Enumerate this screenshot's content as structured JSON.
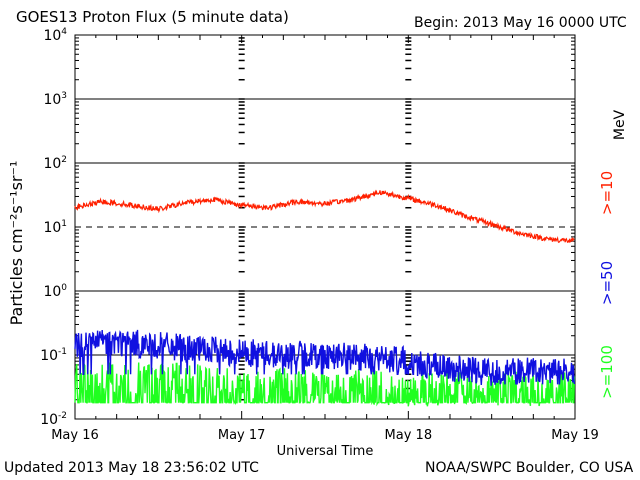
{
  "header": {
    "title": "GOES13 Proton Flux (5 minute data)",
    "begin": "Begin: 2013 May 16 0000 UTC"
  },
  "footer": {
    "updated": "Updated 2013 May 18 23:56:02 UTC",
    "credit": "NOAA/SWPC Boulder, CO USA"
  },
  "chart_data": {
    "type": "line",
    "title": "GOES13 Proton Flux (5 minute data)",
    "xlabel": "Universal Time",
    "ylabel": "Particles cm⁻²s⁻¹sr⁻¹",
    "yscale": "log",
    "ylim": [
      0.01,
      10000
    ],
    "y_ticks": [
      {
        "base": "10",
        "exp": "4"
      },
      {
        "base": "10",
        "exp": "3"
      },
      {
        "base": "10",
        "exp": "2"
      },
      {
        "base": "10",
        "exp": "1"
      },
      {
        "base": "10",
        "exp": "0"
      },
      {
        "base": "10",
        "exp": "-1"
      },
      {
        "base": "10",
        "exp": "-2"
      }
    ],
    "x_ticks": [
      "May 16",
      "May 17",
      "May 18",
      "May 19"
    ],
    "xlim": [
      "2013-05-16",
      "2013-05-19"
    ],
    "threshold": {
      "value": 10,
      "style": "dashed"
    },
    "unit_label": "MeV",
    "series": [
      {
        "name": ">=10",
        "color": "#ff2000",
        "x": [
          "2013-05-16 00:00",
          "2013-05-16 04:00",
          "2013-05-16 08:00",
          "2013-05-16 12:00",
          "2013-05-16 16:00",
          "2013-05-16 20:00",
          "2013-05-17 00:00",
          "2013-05-17 04:00",
          "2013-05-17 08:00",
          "2013-05-17 12:00",
          "2013-05-17 16:00",
          "2013-05-17 20:00",
          "2013-05-18 00:00",
          "2013-05-18 04:00",
          "2013-05-18 08:00",
          "2013-05-18 12:00",
          "2013-05-18 16:00",
          "2013-05-18 20:00",
          "2013-05-18 23:55"
        ],
        "values": [
          20,
          25,
          22,
          19,
          24,
          27,
          22,
          20,
          25,
          23,
          27,
          35,
          28,
          22,
          15,
          11,
          8,
          6.5,
          6
        ]
      },
      {
        "name": ">=50",
        "color": "#1010e0",
        "x": [
          "2013-05-16 00:00",
          "2013-05-16 06:00",
          "2013-05-16 12:00",
          "2013-05-16 18:00",
          "2013-05-17 00:00",
          "2013-05-17 06:00",
          "2013-05-17 12:00",
          "2013-05-17 18:00",
          "2013-05-18 00:00",
          "2013-05-18 06:00",
          "2013-05-18 12:00",
          "2013-05-18 18:00",
          "2013-05-18 23:55"
        ],
        "values": [
          0.15,
          0.16,
          0.14,
          0.12,
          0.11,
          0.1,
          0.1,
          0.09,
          0.08,
          0.06,
          0.055,
          0.055,
          0.055
        ]
      },
      {
        "name": ">=100",
        "color": "#20ff20",
        "x": [
          "2013-05-16 00:00",
          "2013-05-16 12:00",
          "2013-05-17 00:00",
          "2013-05-17 12:00",
          "2013-05-18 00:00",
          "2013-05-18 12:00",
          "2013-05-18 23:55"
        ],
        "values": [
          0.045,
          0.04,
          0.035,
          0.035,
          0.03,
          0.03,
          0.03
        ]
      }
    ]
  }
}
